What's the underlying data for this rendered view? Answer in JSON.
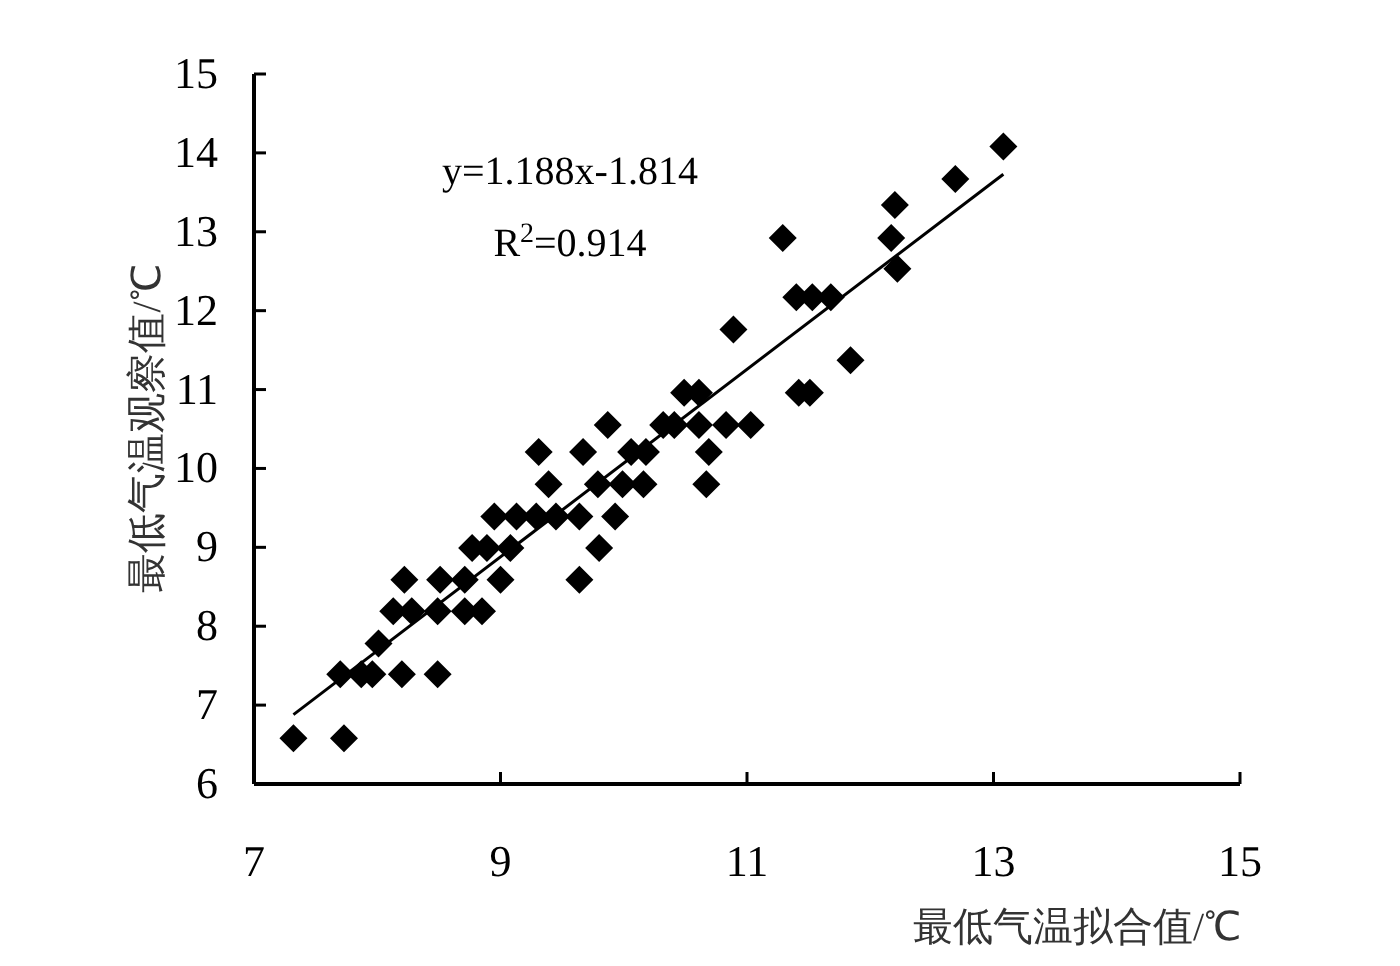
{
  "chart_data": {
    "type": "scatter",
    "xlabel": "最低气温拟合值/℃",
    "ylabel": "最低气温观察值/℃",
    "xlim": [
      7,
      15
    ],
    "xticks": [
      7,
      9,
      11,
      13,
      15
    ],
    "ylim": [
      6,
      15
    ],
    "yticks": [
      6,
      7,
      8,
      9,
      10,
      11,
      12,
      13,
      14,
      15
    ],
    "grid": false,
    "marker": "diamond",
    "annotations": [
      "y=1.188x-1.814",
      "R$^{2}$=0.914"
    ],
    "series": [
      {
        "type": "scatter",
        "color": "#000000",
        "x": [
          7.32,
          7.73,
          7.7,
          7.87,
          7.96,
          8.2,
          8.49,
          8.01,
          8.13,
          8.28,
          8.49,
          8.71,
          8.85,
          8.22,
          8.51,
          8.71,
          9.0,
          8.77,
          8.89,
          9.08,
          8.95,
          9.13,
          9.29,
          9.45,
          9.64,
          9.93,
          9.31,
          9.39,
          9.67,
          9.64,
          9.8,
          9.79,
          9.99,
          10.16,
          9.87,
          10.06,
          10.18,
          10.32,
          10.41,
          10.49,
          10.61,
          10.61,
          10.69,
          10.67,
          10.83,
          11.03,
          10.89,
          11.29,
          11.42,
          11.51,
          11.4,
          11.53,
          11.68,
          11.84,
          12.17,
          12.2,
          12.22,
          12.69,
          13.08
        ],
        "values": [
          6.58,
          6.58,
          7.39,
          7.39,
          7.39,
          7.39,
          7.39,
          7.78,
          8.19,
          8.19,
          8.19,
          8.19,
          8.19,
          8.59,
          8.59,
          8.59,
          8.59,
          8.99,
          8.99,
          8.99,
          9.39,
          9.39,
          9.39,
          9.39,
          9.39,
          9.39,
          10.21,
          9.8,
          10.21,
          8.59,
          8.99,
          9.8,
          9.8,
          9.8,
          10.55,
          10.21,
          10.21,
          10.55,
          10.55,
          10.96,
          10.96,
          10.55,
          10.21,
          9.8,
          10.55,
          10.55,
          11.76,
          12.92,
          10.96,
          10.96,
          12.17,
          12.17,
          12.17,
          11.37,
          12.92,
          13.34,
          12.53,
          13.67,
          14.08
        ]
      },
      {
        "type": "line",
        "color": "#000000",
        "marker": "none",
        "line_style": "solid",
        "x": [
          7.32,
          13.08
        ],
        "values": [
          6.88,
          13.73
        ]
      }
    ]
  }
}
